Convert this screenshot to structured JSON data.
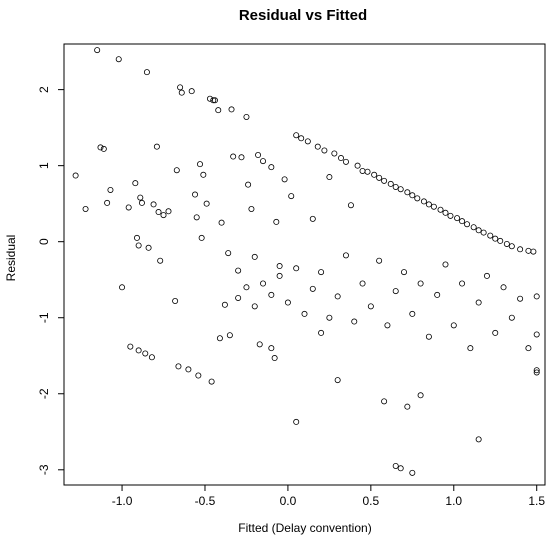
{
  "chart_data": {
    "type": "scatter",
    "title": "Residual vs Fitted",
    "xlabel": "Fitted (Delay convention)",
    "ylabel": "Residual",
    "xlim": [
      -1.35,
      1.55
    ],
    "ylim": [
      -3.2,
      2.6
    ],
    "x_ticks": [
      "-1.0",
      "-0.5",
      "0.0",
      "0.5",
      "1.0",
      "1.5"
    ],
    "y_ticks": [
      "-3",
      "-2",
      "-1",
      "0",
      "1",
      "2"
    ],
    "grid": false,
    "point_color": "#000000",
    "series": [
      {
        "points": [
          [
            -1.28,
            0.87
          ],
          [
            -1.22,
            0.43
          ],
          [
            -1.15,
            2.52
          ],
          [
            -1.13,
            1.24
          ],
          [
            -1.11,
            1.22
          ],
          [
            -1.09,
            0.51
          ],
          [
            -1.07,
            0.68
          ],
          [
            -1.02,
            2.4
          ],
          [
            -1.0,
            -0.6
          ],
          [
            -0.96,
            0.45
          ],
          [
            -0.92,
            0.77
          ],
          [
            -0.91,
            0.05
          ],
          [
            -0.9,
            -0.05
          ],
          [
            -0.89,
            0.58
          ],
          [
            -0.88,
            0.51
          ],
          [
            -0.85,
            2.23
          ],
          [
            -0.84,
            -0.08
          ],
          [
            -0.81,
            0.49
          ],
          [
            -0.79,
            1.25
          ],
          [
            -0.78,
            0.39
          ],
          [
            -0.77,
            -0.25
          ],
          [
            -0.75,
            0.35
          ],
          [
            -0.72,
            0.4
          ],
          [
            -0.68,
            -0.78
          ],
          [
            -0.67,
            0.94
          ],
          [
            -0.65,
            2.03
          ],
          [
            -0.64,
            1.96
          ],
          [
            -0.58,
            1.98
          ],
          [
            -0.56,
            0.62
          ],
          [
            -0.55,
            0.32
          ],
          [
            -0.53,
            1.02
          ],
          [
            -0.52,
            0.05
          ],
          [
            -0.51,
            0.88
          ],
          [
            -0.49,
            0.5
          ],
          [
            -0.47,
            1.88
          ],
          [
            -0.45,
            1.86
          ],
          [
            -0.44,
            1.86
          ],
          [
            -0.42,
            1.73
          ],
          [
            -0.4,
            0.25
          ],
          [
            -0.38,
            -0.83
          ],
          [
            -0.36,
            -0.15
          ],
          [
            -0.34,
            1.74
          ],
          [
            -0.33,
            1.12
          ],
          [
            -0.3,
            -0.38
          ],
          [
            -0.28,
            1.11
          ],
          [
            -0.25,
            1.64
          ],
          [
            -0.24,
            0.75
          ],
          [
            -0.22,
            0.43
          ],
          [
            -0.2,
            -0.2
          ],
          [
            -0.18,
            1.14
          ],
          [
            -0.15,
            1.06
          ],
          [
            -0.1,
            0.98
          ],
          [
            -0.07,
            0.26
          ],
          [
            -0.05,
            -0.32
          ],
          [
            -0.02,
            0.82
          ],
          [
            0.02,
            0.6
          ],
          [
            0.05,
            1.4
          ],
          [
            0.08,
            1.36
          ],
          [
            0.12,
            1.32
          ],
          [
            0.15,
            0.3
          ],
          [
            0.18,
            1.25
          ],
          [
            0.22,
            1.2
          ],
          [
            0.25,
            0.85
          ],
          [
            0.28,
            1.16
          ],
          [
            0.32,
            1.1
          ],
          [
            0.35,
            1.05
          ],
          [
            0.38,
            0.48
          ],
          [
            0.42,
            1.0
          ],
          [
            0.45,
            0.93
          ],
          [
            0.48,
            0.92
          ],
          [
            0.52,
            0.88
          ],
          [
            0.55,
            0.84
          ],
          [
            0.58,
            0.8
          ],
          [
            0.62,
            0.76
          ],
          [
            0.65,
            0.72
          ],
          [
            0.68,
            0.69
          ],
          [
            0.72,
            0.65
          ],
          [
            0.75,
            0.61
          ],
          [
            0.78,
            0.57
          ],
          [
            0.82,
            0.53
          ],
          [
            0.85,
            0.49
          ],
          [
            0.88,
            0.46
          ],
          [
            0.92,
            0.42
          ],
          [
            0.95,
            0.38
          ],
          [
            0.98,
            0.34
          ],
          [
            1.02,
            0.31
          ],
          [
            1.05,
            0.27
          ],
          [
            1.08,
            0.23
          ],
          [
            1.12,
            0.19
          ],
          [
            1.15,
            0.15
          ],
          [
            1.18,
            0.12
          ],
          [
            1.22,
            0.08
          ],
          [
            1.25,
            0.04
          ],
          [
            1.28,
            0.01
          ],
          [
            1.32,
            -0.03
          ],
          [
            1.35,
            -0.06
          ],
          [
            1.4,
            -0.1
          ],
          [
            1.45,
            -0.12
          ],
          [
            1.48,
            -0.13
          ],
          [
            -0.95,
            -1.38
          ],
          [
            -0.9,
            -1.43
          ],
          [
            -0.86,
            -1.47
          ],
          [
            -0.82,
            -1.52
          ],
          [
            -0.66,
            -1.64
          ],
          [
            -0.6,
            -1.68
          ],
          [
            -0.54,
            -1.76
          ],
          [
            -0.46,
            -1.84
          ],
          [
            -0.41,
            -1.27
          ],
          [
            -0.35,
            -1.23
          ],
          [
            -0.17,
            -1.35
          ],
          [
            -0.1,
            -1.4
          ],
          [
            -0.08,
            -1.53
          ],
          [
            0.05,
            -2.37
          ],
          [
            0.2,
            -1.2
          ],
          [
            0.3,
            -1.82
          ],
          [
            0.58,
            -2.1
          ],
          [
            0.65,
            -2.95
          ],
          [
            0.68,
            -2.98
          ],
          [
            0.72,
            -2.17
          ],
          [
            0.75,
            -3.04
          ],
          [
            0.8,
            -2.02
          ],
          [
            1.15,
            -2.6
          ],
          [
            1.5,
            -1.22
          ],
          [
            1.5,
            -1.69
          ],
          [
            1.5,
            -1.72
          ],
          [
            1.5,
            -0.72
          ],
          [
            -0.3,
            -0.74
          ],
          [
            -0.25,
            -0.6
          ],
          [
            -0.2,
            -0.85
          ],
          [
            -0.15,
            -0.55
          ],
          [
            -0.1,
            -0.7
          ],
          [
            -0.05,
            -0.45
          ],
          [
            0.0,
            -0.8
          ],
          [
            0.05,
            -0.35
          ],
          [
            0.1,
            -0.95
          ],
          [
            0.15,
            -0.62
          ],
          [
            0.2,
            -0.4
          ],
          [
            0.25,
            -1.0
          ],
          [
            0.3,
            -0.72
          ],
          [
            0.35,
            -0.18
          ],
          [
            0.4,
            -1.05
          ],
          [
            0.45,
            -0.55
          ],
          [
            0.5,
            -0.85
          ],
          [
            0.55,
            -0.25
          ],
          [
            0.6,
            -1.1
          ],
          [
            0.65,
            -0.65
          ],
          [
            0.7,
            -0.4
          ],
          [
            0.75,
            -0.95
          ],
          [
            0.8,
            -0.55
          ],
          [
            0.85,
            -1.25
          ],
          [
            0.9,
            -0.7
          ],
          [
            0.95,
            -0.3
          ],
          [
            1.0,
            -1.1
          ],
          [
            1.05,
            -0.55
          ],
          [
            1.1,
            -1.4
          ],
          [
            1.15,
            -0.8
          ],
          [
            1.2,
            -0.45
          ],
          [
            1.25,
            -1.2
          ],
          [
            1.3,
            -0.6
          ],
          [
            1.35,
            -1.0
          ],
          [
            1.4,
            -0.75
          ],
          [
            1.45,
            -1.4
          ]
        ]
      }
    ]
  }
}
